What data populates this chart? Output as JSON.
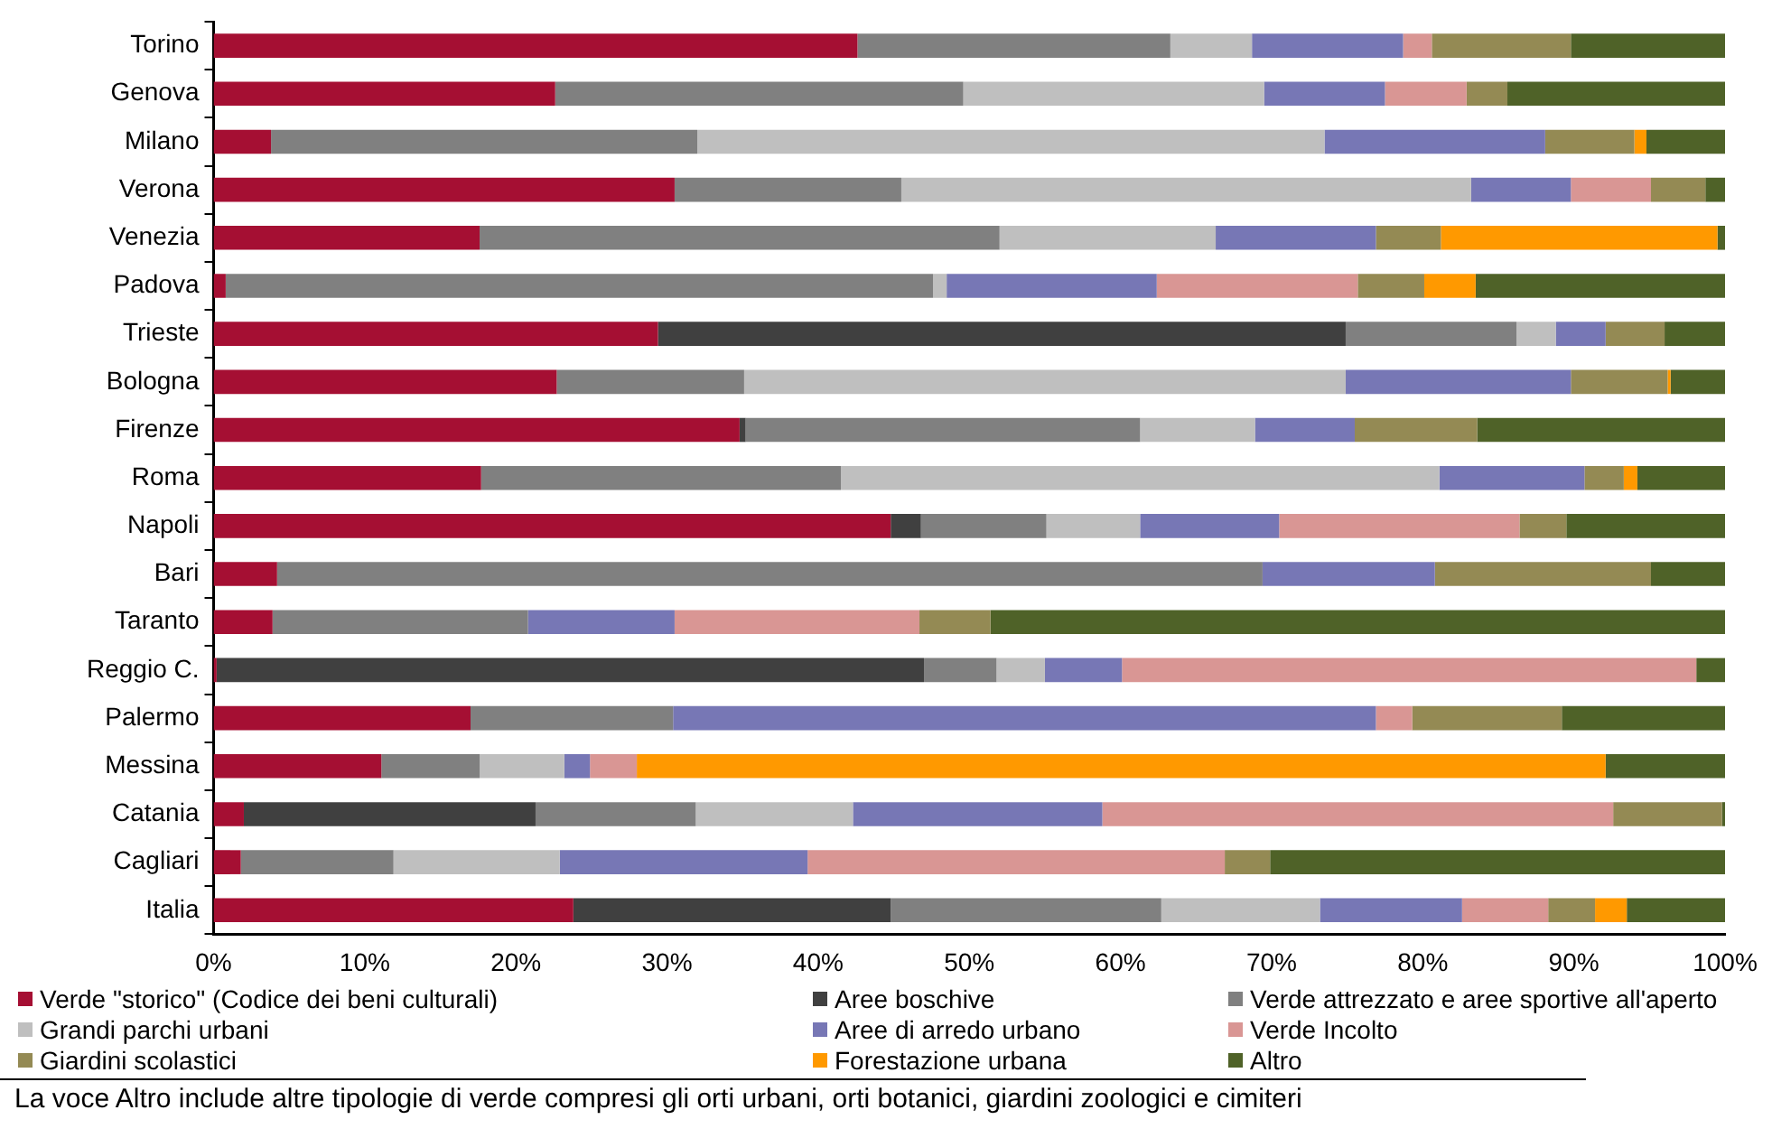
{
  "chart_data": {
    "type": "bar",
    "orientation": "horizontal",
    "stacked": true,
    "categories": [
      "Torino",
      "Genova",
      "Milano",
      "Verona",
      "Venezia",
      "Padova",
      "Trieste",
      "Bologna",
      "Firenze",
      "Roma",
      "Napoli",
      "Bari",
      "Taranto",
      "Reggio C.",
      "Palermo",
      "Messina",
      "Catania",
      "Cagliari",
      "Italia"
    ],
    "xlim": [
      0,
      100
    ],
    "xticks": [
      {
        "value": 0,
        "label": "0%"
      },
      {
        "value": 10,
        "label": "10%"
      },
      {
        "value": 20,
        "label": "20%"
      },
      {
        "value": 30,
        "label": "30%"
      },
      {
        "value": 40,
        "label": "40%"
      },
      {
        "value": 50,
        "label": "50%"
      },
      {
        "value": 60,
        "label": "60%"
      },
      {
        "value": 70,
        "label": "70%"
      },
      {
        "value": 80,
        "label": "80%"
      },
      {
        "value": 90,
        "label": "90%"
      },
      {
        "value": 100,
        "label": "100%"
      }
    ],
    "grid": false,
    "legend": "bottom",
    "series": [
      {
        "name": "Verde \"storico\" (Codice dei beni culturali)",
        "color": "#a50f33",
        "values": [
          42.6,
          22.6,
          3.8,
          30.5,
          17.6,
          0.8,
          29.4,
          22.7,
          34.8,
          17.7,
          44.8,
          4.2,
          3.9,
          0.2,
          17,
          11.1,
          2,
          1.8,
          23.8
        ]
      },
      {
        "name": "Aree boschive",
        "color": "#404040",
        "values": [
          0,
          0,
          0,
          0,
          0,
          0,
          45.5,
          0,
          0.4,
          0,
          2,
          0,
          0,
          46.8,
          0,
          0,
          19.3,
          0,
          21
        ]
      },
      {
        "name": "Verde attrezzato e aree sportive all'aperto",
        "color": "#808080",
        "values": [
          20.7,
          27,
          28.2,
          15,
          34.4,
          46.8,
          11.3,
          12.4,
          26.1,
          23.8,
          8.3,
          65.2,
          16.9,
          4.8,
          13.4,
          6.5,
          10.6,
          10.1,
          17.9
        ]
      },
      {
        "name": "Grandi parchi urbani",
        "color": "#bfbfbf",
        "values": [
          5.4,
          19.9,
          41.5,
          37.7,
          14.3,
          0.9,
          2.6,
          39.8,
          7.6,
          39.6,
          6.2,
          0,
          0,
          3.2,
          0,
          5.6,
          10.4,
          11,
          10.5
        ]
      },
      {
        "name": "Aree di arredo urbano",
        "color": "#7777b5",
        "values": [
          10,
          8,
          14.6,
          6.6,
          10.6,
          13.9,
          3.3,
          14.9,
          6.6,
          9.6,
          9.2,
          11.4,
          9.7,
          5.1,
          46.5,
          1.7,
          16.5,
          16.4,
          9.4
        ]
      },
      {
        "name": "Verde Incolto",
        "color": "#d99694",
        "values": [
          1.9,
          5.4,
          0,
          5.3,
          0,
          13.3,
          0,
          0,
          0,
          0,
          15.9,
          0,
          16.2,
          38,
          2.4,
          3.1,
          33.8,
          27.6,
          5.7
        ]
      },
      {
        "name": "Giardini scolastici",
        "color": "#948a54",
        "values": [
          9.2,
          2.7,
          5.9,
          3.6,
          4.3,
          4.4,
          3.9,
          6.4,
          8.1,
          2.6,
          3.1,
          14.3,
          4.7,
          0,
          9.9,
          0,
          7.2,
          3,
          3.1
        ]
      },
      {
        "name": "Forestazione urbana",
        "color": "#ff9900",
        "values": [
          0,
          0,
          0.8,
          0,
          18.3,
          3.4,
          0,
          0.2,
          0,
          0.9,
          0,
          0,
          0,
          0,
          0,
          64.1,
          0,
          0,
          2.1
        ]
      },
      {
        "name": "Altro",
        "color": "#4f6228",
        "values": [
          10.2,
          14.4,
          5.2,
          1.3,
          0.5,
          16.5,
          4,
          3.6,
          16.4,
          5.8,
          10.5,
          4.9,
          48.6,
          1.9,
          10.8,
          7.9,
          0.2,
          30.1,
          6.5
        ]
      }
    ],
    "annotations": [
      "La voce Altro include altre tipologie di verde compresi gli orti urbani, orti botanici, giardini zoologici e cimiteri"
    ]
  }
}
